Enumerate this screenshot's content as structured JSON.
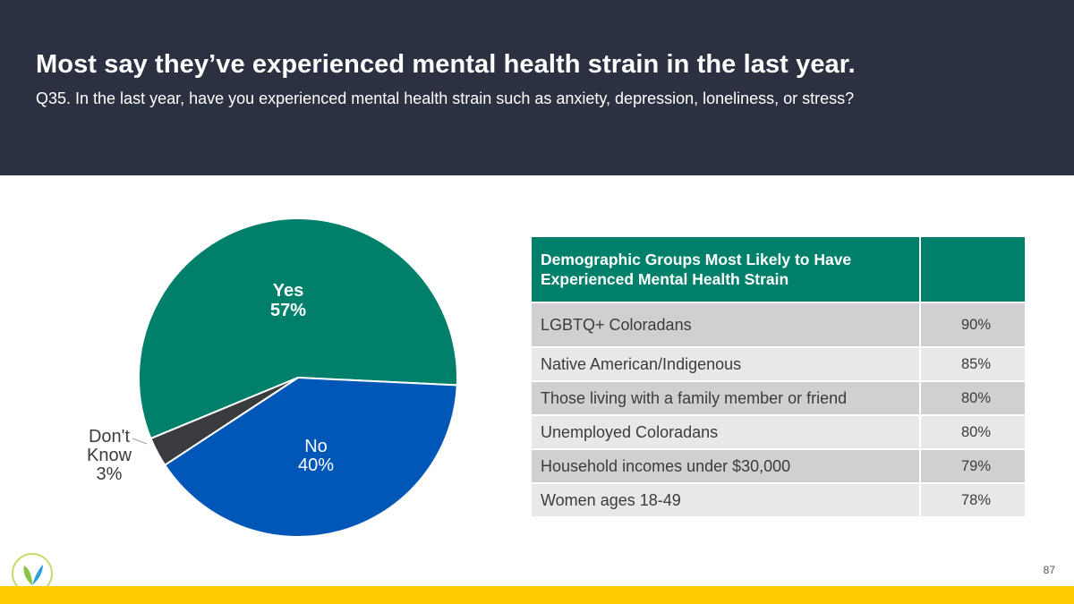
{
  "header": {
    "title": "Most say they’ve experienced mental health strain in the last year.",
    "subtitle": "Q35. In the last year, have you experienced mental health strain such as anxiety, depression, loneliness, or stress?"
  },
  "chart_data": {
    "type": "pie",
    "slices": [
      {
        "label": "Yes",
        "value": 57,
        "display": "57%",
        "color": "#00806b"
      },
      {
        "label": "No",
        "value": 40,
        "display": "40%",
        "color": "#0057b7"
      },
      {
        "label": "Don't Know",
        "value": 3,
        "display": "3%",
        "color": "#3a3b3e"
      }
    ]
  },
  "table": {
    "header": "Demographic Groups Most Likely to Have Experienced Mental Health Strain",
    "rows": [
      {
        "group": "LGBTQ+ Coloradans",
        "value": "90%"
      },
      {
        "group": "Native American/Indigenous",
        "value": "85%"
      },
      {
        "group": "Those living with a family member or friend",
        "value": "80%"
      },
      {
        "group": "Unemployed Coloradans",
        "value": "80%"
      },
      {
        "group": "Household incomes under $30,000",
        "value": "79%"
      },
      {
        "group": "Women ages 18-49",
        "value": "78%"
      }
    ]
  },
  "footer": {
    "page_number": "87",
    "logo_icon": "leaf-logo-icon",
    "accent_color": "#fecc00"
  }
}
